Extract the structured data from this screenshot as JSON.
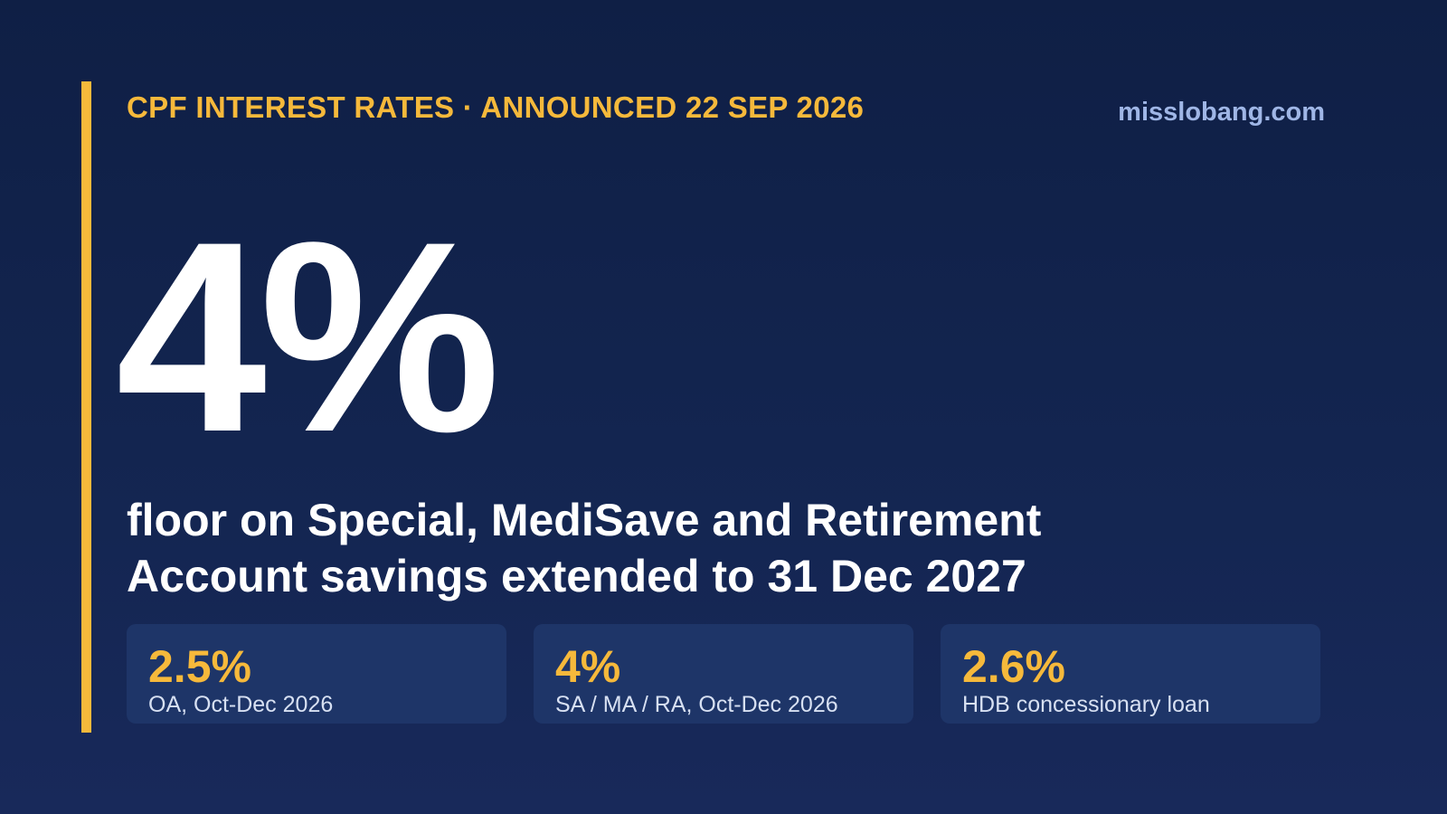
{
  "header": {
    "kicker": "CPF INTEREST RATES · ANNOUNCED 22 SEP 2026",
    "brand": "misslobang.com"
  },
  "hero": {
    "value": "4%",
    "subtitle": "floor on Special, MediSave and Retirement Account savings extended to 31 Dec 2027"
  },
  "stats": [
    {
      "value": "2.5%",
      "label": "OA, Oct-Dec 2026"
    },
    {
      "value": "4%",
      "label": "SA / MA / RA, Oct-Dec 2026"
    },
    {
      "value": "2.6%",
      "label": "HDB concessionary loan"
    }
  ],
  "colors": {
    "background": "#132550",
    "accent": "#f6b93b",
    "brand": "#9fb6e6",
    "card": "#1e3568"
  }
}
